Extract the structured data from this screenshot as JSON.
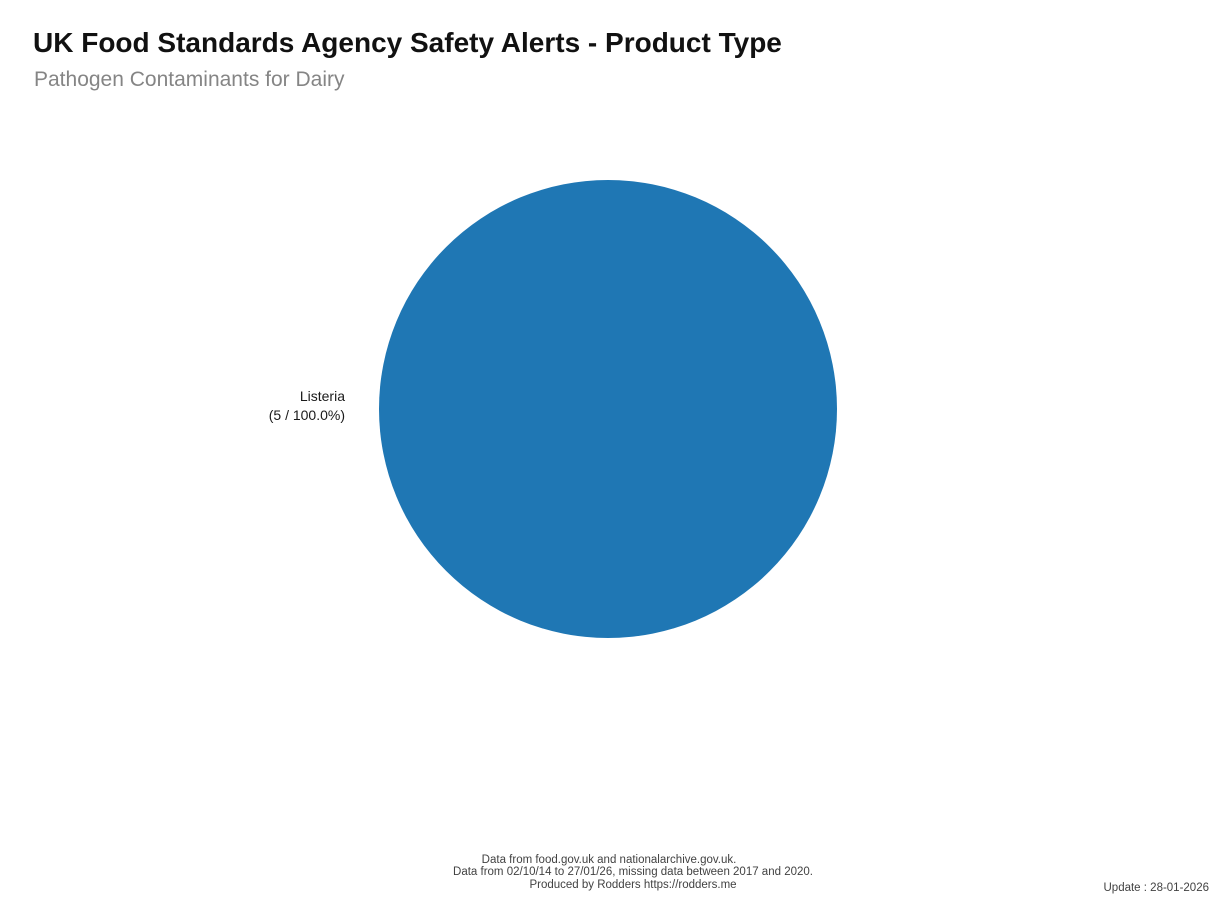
{
  "header": {
    "title": "UK Food Standards Agency Safety Alerts - Product Type",
    "subtitle": "Pathogen Contaminants for Dairy"
  },
  "chart_data": {
    "type": "pie",
    "title": "UK Food Standards Agency Safety Alerts - Product Type",
    "subtitle": "Pathogen Contaminants for Dairy",
    "slices": [
      {
        "label": "Listeria",
        "count": 5,
        "percent": 100.0,
        "color": "#1f77b4"
      }
    ],
    "total_count": 5,
    "legend_position": "none",
    "labels_outside": true
  },
  "pie_label": {
    "line1": "Listeria",
    "line2": "(5 / 100.0%)"
  },
  "footer": {
    "line1": "Data from food.gov.uk and nationalarchive.gov.uk.",
    "line2": "Data from 02/10/14 to 27/01/26, missing data between 2017 and 2020.",
    "line3": "Produced by Rodders https://rodders.me",
    "update": "Update : 28-01-2026"
  },
  "colors": {
    "pie_slice": "#1f77b4",
    "title": "#111111",
    "subtitle": "#858585",
    "footer_text": "#424242",
    "background": "#ffffff"
  }
}
